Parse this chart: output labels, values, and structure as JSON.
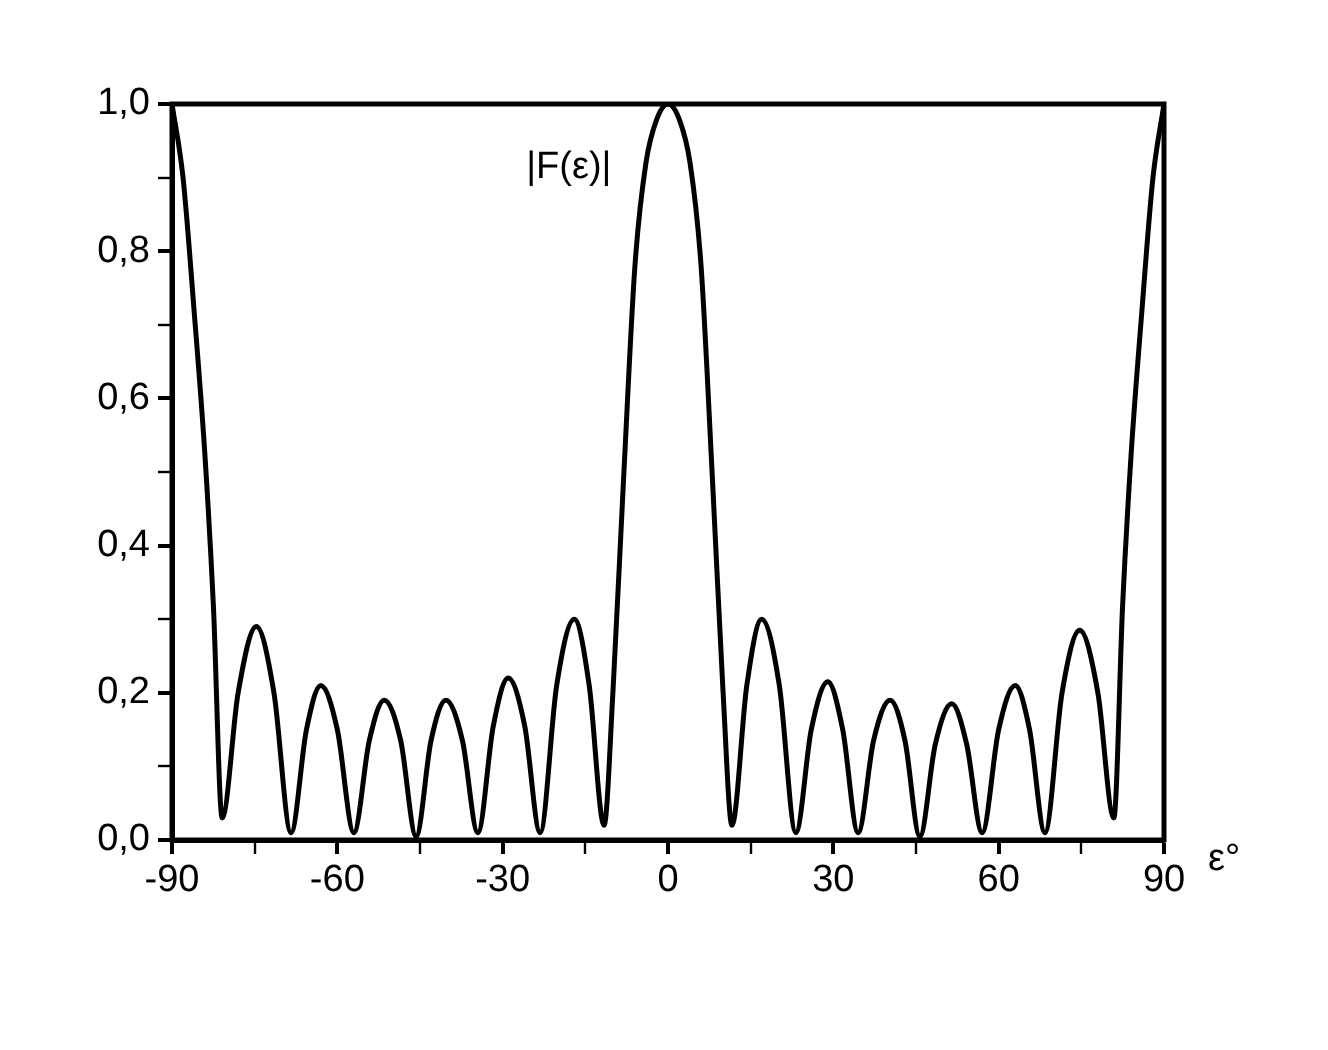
{
  "chart_data": {
    "type": "line",
    "xlabel": "ε°",
    "annotations": [
      "|F(ε)|"
    ],
    "xlim": [
      -90,
      90
    ],
    "xticks": [
      -90,
      {
        "value": -75,
        "label": null
      },
      -60,
      {
        "value": -45,
        "label": null
      },
      -30,
      {
        "value": -15,
        "label": null
      },
      0,
      {
        "value": 15,
        "label": null
      },
      30,
      {
        "value": 45,
        "label": null
      },
      60,
      {
        "value": 75,
        "label": null
      },
      90
    ],
    "ylim": [
      0,
      1
    ],
    "yticks": [
      {
        "value": 0,
        "label": "0,0"
      },
      {
        "value": 0.1,
        "label": null
      },
      {
        "value": 0.2,
        "label": "0,2"
      },
      {
        "value": 0.3,
        "label": null
      },
      {
        "value": 0.4,
        "label": "0,4"
      },
      {
        "value": 0.5,
        "label": null
      },
      {
        "value": 0.6,
        "label": "0,6"
      },
      {
        "value": 0.7,
        "label": null
      },
      {
        "value": 0.8,
        "label": "0,8"
      },
      {
        "value": 0.9,
        "label": null
      },
      {
        "value": 1,
        "label": "1,0"
      }
    ],
    "grid": false,
    "legend": false,
    "marker": "none",
    "line_style": "solid",
    "series": [
      {
        "color": "#000000",
        "x": [
          -90,
          -88,
          -86,
          -84,
          -82.5,
          -80.9,
          -78,
          -74.7,
          -71.5,
          -68.4,
          -65.6,
          -63,
          -60,
          -57,
          -54.2,
          -51.5,
          -48.5,
          -45.7,
          -43,
          -40.3,
          -37.3,
          -34.5,
          -31.7,
          -29,
          -26,
          -23.2,
          -20.2,
          -17,
          -14.3,
          -11.6,
          -10,
          -8,
          -6,
          -4,
          -2,
          0,
          2,
          4,
          6,
          8,
          10,
          11.6,
          14.3,
          17,
          20.2,
          23.2,
          26,
          29,
          31.7,
          34.5,
          37.3,
          40.3,
          43,
          45.7,
          48.5,
          51.5,
          54.2,
          57,
          60,
          63,
          65.6,
          68.4,
          71.5,
          74.7,
          78,
          80.9,
          82.5,
          84,
          86,
          88,
          90
        ],
        "values": [
          1,
          0.9,
          0.72,
          0.52,
          0.32,
          0.03,
          0.2,
          0.29,
          0.2,
          0.01,
          0.15,
          0.21,
          0.15,
          0.01,
          0.135,
          0.19,
          0.135,
          0.005,
          0.135,
          0.19,
          0.135,
          0.01,
          0.155,
          0.22,
          0.155,
          0.01,
          0.21,
          0.3,
          0.21,
          0.02,
          0.2,
          0.5,
          0.78,
          0.92,
          0.98,
          1,
          0.98,
          0.92,
          0.78,
          0.5,
          0.2,
          0.02,
          0.21,
          0.3,
          0.21,
          0.01,
          0.15,
          0.215,
          0.15,
          0.01,
          0.135,
          0.19,
          0.135,
          0.005,
          0.13,
          0.185,
          0.13,
          0.01,
          0.15,
          0.21,
          0.15,
          0.01,
          0.2,
          0.285,
          0.2,
          0.03,
          0.32,
          0.52,
          0.72,
          0.9,
          1
        ]
      }
    ]
  }
}
